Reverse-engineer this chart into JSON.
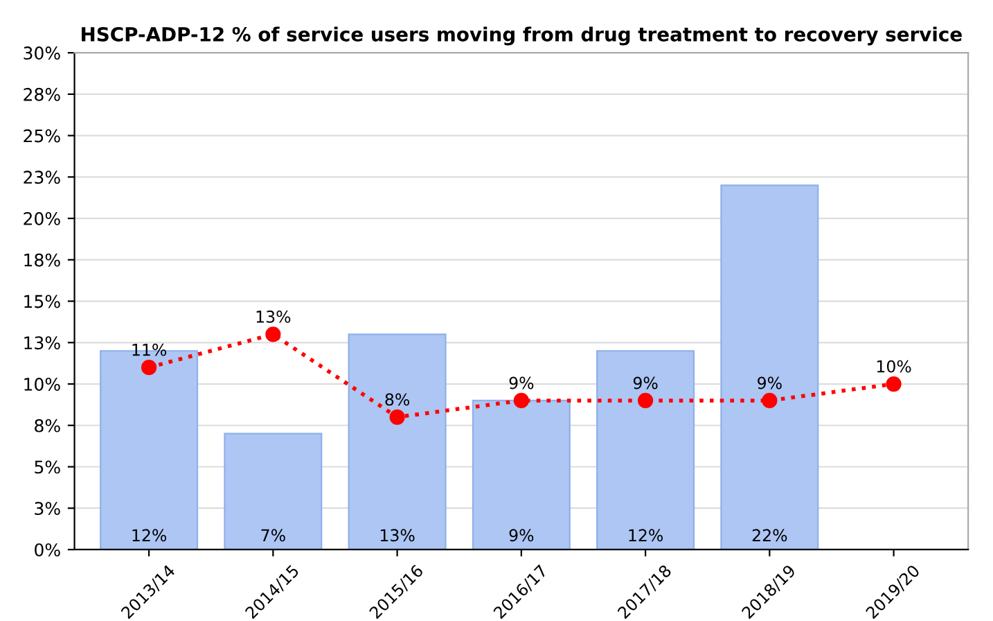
{
  "chart_data": {
    "type": "bar",
    "title": "HSCP-ADP-12 % of service users moving from drug treatment to recovery service",
    "categories": [
      "2013/14",
      "2014/15",
      "2015/16",
      "2016/17",
      "2017/18",
      "2018/19",
      "2019/20"
    ],
    "series": [
      {
        "color": "#adc6f3",
        "values": [
          12,
          7,
          13,
          9,
          12,
          22,
          null
        ],
        "value_labels": [
          "12%",
          "7%",
          "13%",
          "9%",
          "12%",
          "22%",
          null
        ]
      },
      {
        "type": "line",
        "color": "#ff0000",
        "marker": "circle",
        "line_style": "dotted",
        "values": [
          11,
          13,
          8,
          9,
          9,
          9,
          10
        ],
        "value_labels": [
          "11%",
          "13%",
          "8%",
          "9%",
          "9%",
          "9%",
          "10%"
        ]
      }
    ],
    "ylim": [
      0,
      30
    ],
    "yticks": [
      {
        "value": 0,
        "label": "0%"
      },
      {
        "value": 2.5,
        "label": "3%"
      },
      {
        "value": 5,
        "label": "5%"
      },
      {
        "value": 7.5,
        "label": "8%"
      },
      {
        "value": 10,
        "label": "10%"
      },
      {
        "value": 12.5,
        "label": "13%"
      },
      {
        "value": 15,
        "label": "15%"
      },
      {
        "value": 17.5,
        "label": "18%"
      },
      {
        "value": 20,
        "label": "20%"
      },
      {
        "value": 22.5,
        "label": "23%"
      },
      {
        "value": 25,
        "label": "25%"
      },
      {
        "value": 27.5,
        "label": "28%"
      },
      {
        "value": 30,
        "label": "30%"
      }
    ],
    "grid": "y",
    "legend": false
  }
}
